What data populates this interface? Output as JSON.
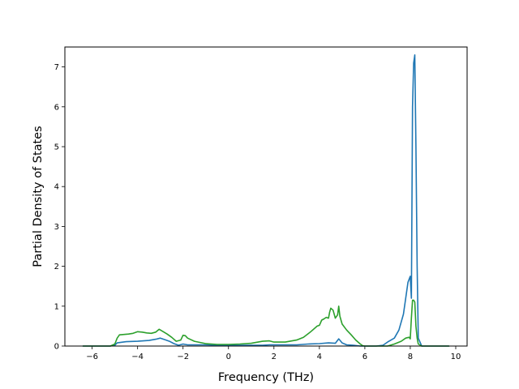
{
  "chart_data": {
    "type": "line",
    "title": "",
    "xlabel": "Frequency (THz)",
    "ylabel": "Partial Density of States",
    "xlim": [
      -7.2,
      10.5
    ],
    "ylim": [
      0,
      7.5
    ],
    "xticks": [
      -6,
      -4,
      -2,
      0,
      2,
      4,
      6,
      8,
      10
    ],
    "yticks": [
      0,
      1,
      2,
      3,
      4,
      5,
      6,
      7
    ],
    "grid": false,
    "legend": "none",
    "series": [
      {
        "color": "#1f77b4",
        "x": [
          -6.4,
          -5.2,
          -5.0,
          -4.9,
          -4.5,
          -4.0,
          -3.5,
          -3.2,
          -3.0,
          -2.8,
          -2.6,
          -2.4,
          -2.2,
          -2.0,
          -1.8,
          -1.5,
          -1.0,
          -0.5,
          0.0,
          0.5,
          1.0,
          1.5,
          1.8,
          2.0,
          2.5,
          3.0,
          3.5,
          4.0,
          4.4,
          4.7,
          4.85,
          5.0,
          5.2,
          5.5,
          5.8,
          6.0,
          6.5,
          6.8,
          7.0,
          7.3,
          7.5,
          7.7,
          7.8,
          7.9,
          8.0,
          8.05,
          8.1,
          8.15,
          8.2,
          8.25,
          8.3,
          8.35,
          8.5,
          9.0,
          9.7
        ],
        "y": [
          0.0,
          0.0,
          0.02,
          0.08,
          0.11,
          0.12,
          0.14,
          0.17,
          0.2,
          0.16,
          0.12,
          0.06,
          0.02,
          0.05,
          0.03,
          0.03,
          0.03,
          0.02,
          0.02,
          0.02,
          0.02,
          0.02,
          0.03,
          0.03,
          0.03,
          0.03,
          0.05,
          0.06,
          0.08,
          0.07,
          0.18,
          0.08,
          0.03,
          0.02,
          0.0,
          0.0,
          0.0,
          0.02,
          0.1,
          0.2,
          0.4,
          0.8,
          1.2,
          1.6,
          1.75,
          1.2,
          6.0,
          7.1,
          7.3,
          5.0,
          2.0,
          0.2,
          0.0,
          0.0,
          0.0
        ]
      },
      {
        "color": "#2ca02c",
        "x": [
          -6.4,
          -5.2,
          -5.0,
          -4.9,
          -4.8,
          -4.6,
          -4.4,
          -4.2,
          -4.0,
          -3.8,
          -3.6,
          -3.4,
          -3.2,
          -3.05,
          -2.9,
          -2.7,
          -2.5,
          -2.3,
          -2.1,
          -2.0,
          -1.9,
          -1.8,
          -1.5,
          -1.0,
          -0.5,
          0.0,
          0.5,
          1.0,
          1.3,
          1.5,
          1.8,
          2.0,
          2.5,
          3.0,
          3.3,
          3.6,
          3.9,
          4.0,
          4.1,
          4.2,
          4.3,
          4.4,
          4.45,
          4.5,
          4.6,
          4.7,
          4.8,
          4.85,
          4.9,
          5.0,
          5.2,
          5.4,
          5.6,
          5.8,
          5.9,
          6.0,
          6.5,
          7.0,
          7.3,
          7.6,
          7.8,
          7.95,
          8.0,
          8.05,
          8.1,
          8.15,
          8.2,
          8.25,
          8.3,
          8.35,
          8.5,
          9.0,
          9.7
        ],
        "y": [
          0.0,
          0.0,
          0.05,
          0.2,
          0.28,
          0.29,
          0.3,
          0.32,
          0.36,
          0.35,
          0.33,
          0.32,
          0.35,
          0.42,
          0.37,
          0.3,
          0.22,
          0.12,
          0.15,
          0.27,
          0.26,
          0.2,
          0.12,
          0.06,
          0.04,
          0.04,
          0.05,
          0.07,
          0.1,
          0.12,
          0.13,
          0.1,
          0.1,
          0.15,
          0.22,
          0.35,
          0.5,
          0.52,
          0.65,
          0.68,
          0.72,
          0.7,
          0.85,
          0.95,
          0.9,
          0.7,
          0.78,
          1.0,
          0.75,
          0.55,
          0.4,
          0.28,
          0.15,
          0.05,
          0.01,
          0.0,
          0.0,
          0.0,
          0.05,
          0.12,
          0.2,
          0.22,
          0.18,
          0.7,
          1.15,
          1.15,
          1.1,
          0.5,
          0.2,
          0.05,
          0.0,
          0.0,
          0.0
        ]
      }
    ]
  }
}
